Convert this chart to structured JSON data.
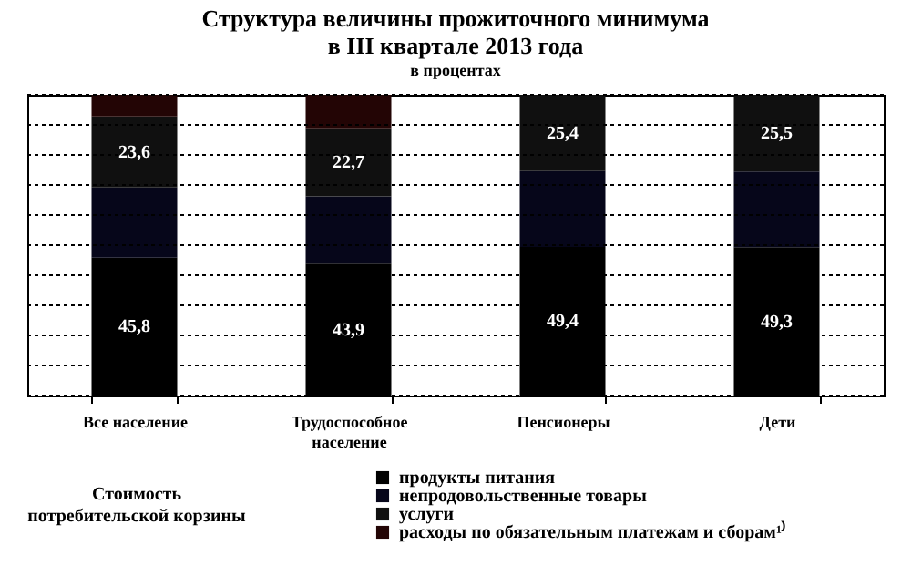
{
  "chart_data": {
    "type": "bar",
    "title": "Структура величины прожиточного минимума\nв III квартале 2013 года",
    "subtitle": "в процентах",
    "categories": [
      "Все население",
      "Трудоспособное население",
      "Пенсионеры",
      "Дети"
    ],
    "stacked": true,
    "ylim": [
      0,
      100
    ],
    "yticks": [
      {
        "value": 0,
        "label": null
      },
      {
        "value": 10,
        "label": null
      },
      {
        "value": 20,
        "label": null
      },
      {
        "value": 30,
        "label": null
      },
      {
        "value": 40,
        "label": null
      },
      {
        "value": 50,
        "label": null
      },
      {
        "value": 60,
        "label": null
      },
      {
        "value": 70,
        "label": null
      },
      {
        "value": 80,
        "label": null
      },
      {
        "value": 90,
        "label": null
      },
      {
        "value": 100,
        "label": null
      }
    ],
    "grid": "y",
    "legend": "bottom",
    "legend_title": "Стоимость потребительской корзины",
    "series": [
      {
        "name": "продукты питания",
        "color": "#000000",
        "values": [
          45.8,
          43.9,
          49.4,
          49.3
        ],
        "value_labels": [
          "45,8",
          "43,9",
          "49,4",
          "49,3"
        ]
      },
      {
        "name": "непродовольственные товары",
        "color": "#06061a",
        "values": [
          23.4,
          22.3,
          25.2,
          25.2
        ]
      },
      {
        "name": "услуги",
        "color": "#101010",
        "values": [
          23.6,
          22.7,
          25.4,
          25.5
        ],
        "value_labels": [
          "23,6",
          "22,7",
          "25,4",
          "25,5"
        ]
      },
      {
        "name": "расходы по обязательным платежам и сборам¹⁾",
        "color": "#230505",
        "values": [
          7.2,
          11.1,
          null,
          null
        ]
      }
    ]
  }
}
